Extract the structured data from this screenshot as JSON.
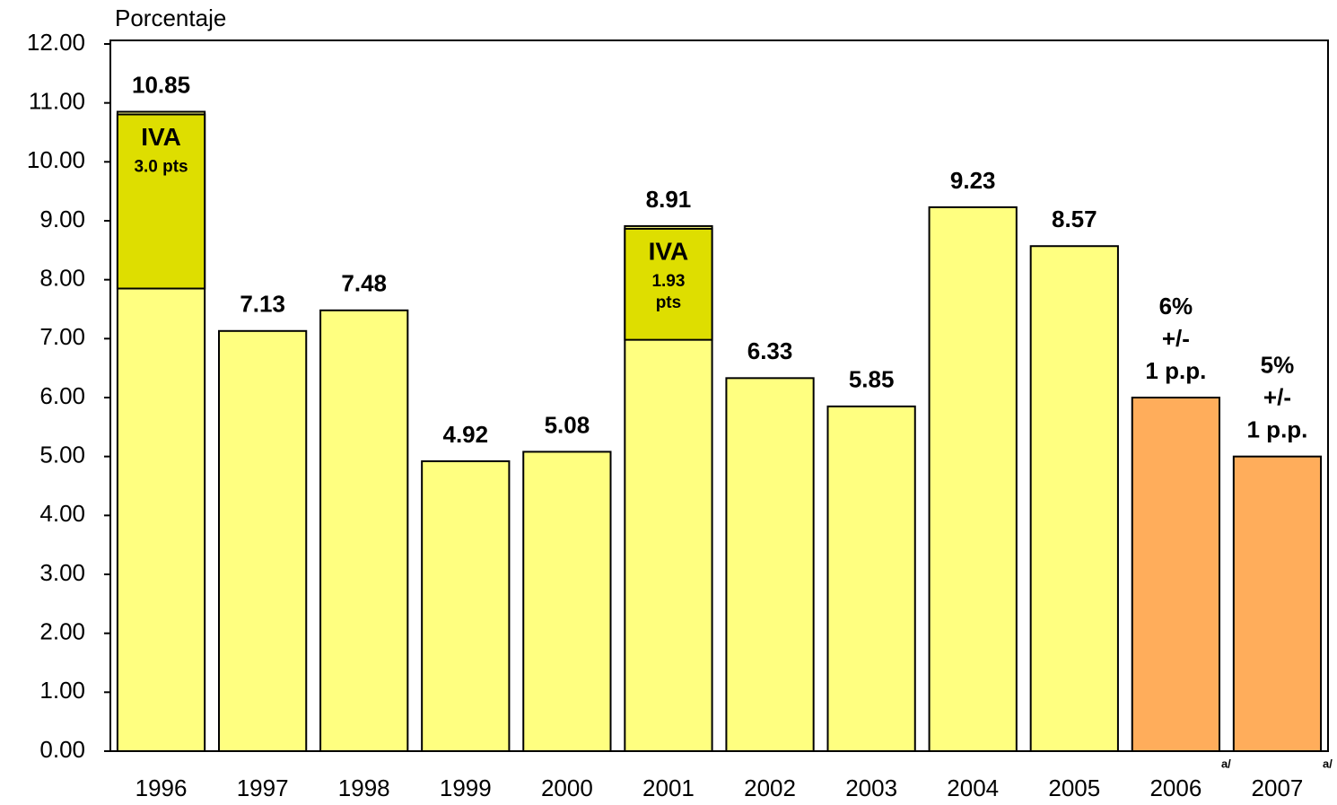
{
  "chart_data": {
    "type": "bar",
    "y_label": "Porcentaje",
    "categories": [
      "1996",
      "1997",
      "1998",
      "1999",
      "2000",
      "2001",
      "2002",
      "2003",
      "2004",
      "2005",
      "2006",
      "2007"
    ],
    "category_notes": [
      null,
      null,
      null,
      null,
      null,
      null,
      null,
      null,
      null,
      null,
      "a/",
      "a/"
    ],
    "values": [
      10.85,
      7.13,
      7.48,
      4.92,
      5.08,
      8.91,
      6.33,
      5.85,
      9.23,
      8.57,
      6,
      5
    ],
    "value_labels": [
      [
        "10.85"
      ],
      [
        "7.13"
      ],
      [
        "7.48"
      ],
      [
        "4.92"
      ],
      [
        "5.08"
      ],
      [
        "8.91"
      ],
      [
        "6.33"
      ],
      [
        "5.85"
      ],
      [
        "9.23"
      ],
      [
        "8.57"
      ],
      [
        "6%",
        "+/-",
        "1 p.p."
      ],
      [
        "5%",
        "+/-",
        "1 p.p."
      ]
    ],
    "colors": [
      "#ffff80",
      "#ffff80",
      "#ffff80",
      "#ffff80",
      "#ffff80",
      "#ffff80",
      "#ffff80",
      "#ffff80",
      "#ffff80",
      "#ffff80",
      "#ffad5b",
      "#ffad5b"
    ],
    "segments": {
      "name": "IVA",
      "color": "#dede00",
      "values": [
        3.0,
        null,
        null,
        null,
        null,
        1.93,
        null,
        null,
        null,
        null,
        null,
        null
      ],
      "value_labels": [
        [
          "3.0  pts"
        ],
        null,
        null,
        null,
        null,
        [
          "1.93",
          "pts"
        ],
        null,
        null,
        null,
        null,
        null,
        null
      ]
    },
    "ylim": [
      0,
      12
    ],
    "yticks": [
      {
        "value": 0,
        "label": "0.00"
      },
      {
        "value": 1,
        "label": "1.00"
      },
      {
        "value": 2,
        "label": "2.00"
      },
      {
        "value": 3,
        "label": "3.00"
      },
      {
        "value": 4,
        "label": "4.00"
      },
      {
        "value": 5,
        "label": "5.00"
      },
      {
        "value": 6,
        "label": "6.00"
      },
      {
        "value": 7,
        "label": "7.00"
      },
      {
        "value": 8,
        "label": "8.00"
      },
      {
        "value": 9,
        "label": "9.00"
      },
      {
        "value": 10,
        "label": "10.00"
      },
      {
        "value": 11,
        "label": "11.00"
      },
      {
        "value": 12,
        "label": "12.00"
      }
    ],
    "grid": false
  }
}
